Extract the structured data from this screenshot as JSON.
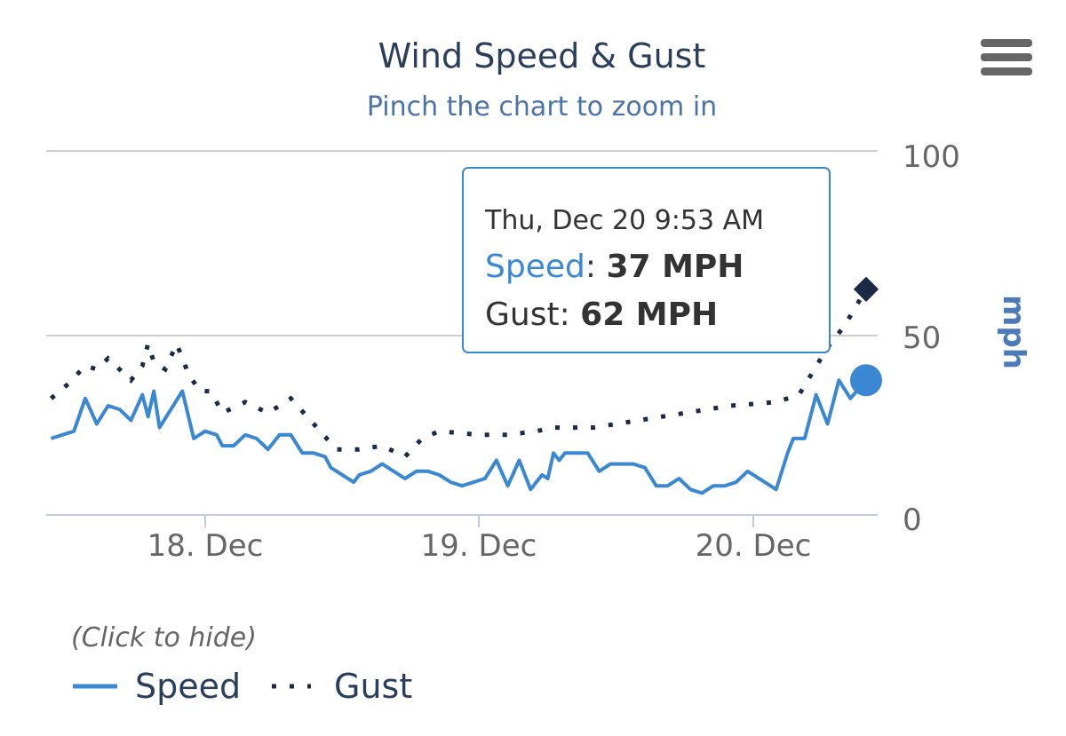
{
  "chart_data": {
    "type": "line",
    "title": "Wind Speed & Gust",
    "subtitle": "Pinch the chart to zoom in",
    "ylabel": "mph",
    "ylim": [
      0,
      100
    ],
    "y_ticks": [
      "0",
      "50",
      "100"
    ],
    "x_range": [
      "2018-12-17T10:30",
      "2018-12-20T09:53"
    ],
    "x_ticks": [
      {
        "label": "18. Dec",
        "t": "2018-12-18T00:00"
      },
      {
        "label": "19. Dec",
        "t": "2018-12-19T00:00"
      },
      {
        "label": "20. Dec",
        "t": "2018-12-20T00:00"
      }
    ],
    "grid": true,
    "legend_position": "bottom-left",
    "legend_hint": "(Click to hide)",
    "series": [
      {
        "name": "Speed",
        "color": "#3a87d4",
        "style": "solid",
        "points": [
          [
            "2018-12-17T10:30",
            21
          ],
          [
            "2018-12-17T11:30",
            22
          ],
          [
            "2018-12-17T12:30",
            23
          ],
          [
            "2018-12-17T13:30",
            32
          ],
          [
            "2018-12-17T14:30",
            25
          ],
          [
            "2018-12-17T15:30",
            30
          ],
          [
            "2018-12-17T16:30",
            29
          ],
          [
            "2018-12-17T17:30",
            26
          ],
          [
            "2018-12-17T18:30",
            33
          ],
          [
            "2018-12-17T19:00",
            27
          ],
          [
            "2018-12-17T19:30",
            34
          ],
          [
            "2018-12-17T20:00",
            24
          ],
          [
            "2018-12-17T21:00",
            29
          ],
          [
            "2018-12-17T22:00",
            34
          ],
          [
            "2018-12-17T23:00",
            21
          ],
          [
            "2018-12-18T00:00",
            23
          ],
          [
            "2018-12-18T01:00",
            22
          ],
          [
            "2018-12-18T01:30",
            19
          ],
          [
            "2018-12-18T02:30",
            19
          ],
          [
            "2018-12-18T03:30",
            22
          ],
          [
            "2018-12-18T04:30",
            21
          ],
          [
            "2018-12-18T05:30",
            18
          ],
          [
            "2018-12-18T06:30",
            22
          ],
          [
            "2018-12-18T07:30",
            22
          ],
          [
            "2018-12-18T08:30",
            17
          ],
          [
            "2018-12-18T09:30",
            17
          ],
          [
            "2018-12-18T10:30",
            16
          ],
          [
            "2018-12-18T11:00",
            13
          ],
          [
            "2018-12-18T12:00",
            11
          ],
          [
            "2018-12-18T13:00",
            9
          ],
          [
            "2018-12-18T13:30",
            11
          ],
          [
            "2018-12-18T14:30",
            12
          ],
          [
            "2018-12-18T15:30",
            14
          ],
          [
            "2018-12-18T16:30",
            12
          ],
          [
            "2018-12-18T17:30",
            10
          ],
          [
            "2018-12-18T18:30",
            12
          ],
          [
            "2018-12-18T19:30",
            12
          ],
          [
            "2018-12-18T20:30",
            11
          ],
          [
            "2018-12-18T21:30",
            9
          ],
          [
            "2018-12-18T22:30",
            8
          ],
          [
            "2018-12-18T23:30",
            9
          ],
          [
            "2018-12-19T00:30",
            10
          ],
          [
            "2018-12-19T01:30",
            15
          ],
          [
            "2018-12-19T02:30",
            8
          ],
          [
            "2018-12-19T03:30",
            15
          ],
          [
            "2018-12-19T04:30",
            7
          ],
          [
            "2018-12-19T05:30",
            11
          ],
          [
            "2018-12-19T06:00",
            10
          ],
          [
            "2018-12-19T06:30",
            17
          ],
          [
            "2018-12-19T07:00",
            15
          ],
          [
            "2018-12-19T07:30",
            17
          ],
          [
            "2018-12-19T08:30",
            17
          ],
          [
            "2018-12-19T09:30",
            17
          ],
          [
            "2018-12-19T10:30",
            12
          ],
          [
            "2018-12-19T11:30",
            14
          ],
          [
            "2018-12-19T12:30",
            14
          ],
          [
            "2018-12-19T13:30",
            14
          ],
          [
            "2018-12-19T14:30",
            13
          ],
          [
            "2018-12-19T15:30",
            8
          ],
          [
            "2018-12-19T16:30",
            8
          ],
          [
            "2018-12-19T17:30",
            10
          ],
          [
            "2018-12-19T18:30",
            7
          ],
          [
            "2018-12-19T19:30",
            6
          ],
          [
            "2018-12-19T20:30",
            8
          ],
          [
            "2018-12-19T21:30",
            8
          ],
          [
            "2018-12-19T22:30",
            9
          ],
          [
            "2018-12-19T23:30",
            12
          ],
          [
            "2018-12-20T01:00",
            9
          ],
          [
            "2018-12-20T02:00",
            7
          ],
          [
            "2018-12-20T03:00",
            17
          ],
          [
            "2018-12-20T03:30",
            21
          ],
          [
            "2018-12-20T04:30",
            21
          ],
          [
            "2018-12-20T05:30",
            33
          ],
          [
            "2018-12-20T06:30",
            25
          ],
          [
            "2018-12-20T07:30",
            37
          ],
          [
            "2018-12-20T08:30",
            32
          ],
          [
            "2018-12-20T09:53",
            37
          ]
        ]
      },
      {
        "name": "Gust",
        "color": "#1b2a45",
        "style": "dotted",
        "points": [
          [
            "2018-12-17T10:30",
            32
          ],
          [
            "2018-12-17T12:00",
            36
          ],
          [
            "2018-12-17T13:30",
            41
          ],
          [
            "2018-12-17T14:30",
            40
          ],
          [
            "2018-12-17T15:30",
            43
          ],
          [
            "2018-12-17T16:30",
            40
          ],
          [
            "2018-12-17T17:30",
            37
          ],
          [
            "2018-12-17T18:30",
            41
          ],
          [
            "2018-12-17T19:00",
            47
          ],
          [
            "2018-12-17T19:30",
            42
          ],
          [
            "2018-12-17T20:30",
            40
          ],
          [
            "2018-12-17T21:30",
            47
          ],
          [
            "2018-12-17T22:30",
            39
          ],
          [
            "2018-12-17T23:30",
            34
          ],
          [
            "2018-12-18T00:30",
            34
          ],
          [
            "2018-12-18T01:30",
            28
          ],
          [
            "2018-12-18T03:30",
            31
          ],
          [
            "2018-12-18T05:30",
            28
          ],
          [
            "2018-12-18T07:30",
            32
          ],
          [
            "2018-12-18T09:30",
            25
          ],
          [
            "2018-12-18T11:30",
            18
          ],
          [
            "2018-12-18T13:30",
            18
          ],
          [
            "2018-12-18T15:30",
            19
          ],
          [
            "2018-12-18T17:30",
            16
          ],
          [
            "2018-12-18T19:00",
            21
          ],
          [
            "2018-12-18T20:30",
            23
          ],
          [
            "2018-12-19T00:00",
            22
          ],
          [
            "2018-12-19T02:30",
            22
          ],
          [
            "2018-12-19T05:00",
            23
          ],
          [
            "2018-12-19T06:30",
            24
          ],
          [
            "2018-12-19T10:00",
            24
          ],
          [
            "2018-12-19T14:00",
            26
          ],
          [
            "2018-12-19T18:00",
            28
          ],
          [
            "2018-12-19T22:00",
            30
          ],
          [
            "2018-12-20T02:00",
            31
          ],
          [
            "2018-12-20T04:00",
            33
          ],
          [
            "2018-12-20T06:30",
            46
          ],
          [
            "2018-12-20T08:00",
            52
          ],
          [
            "2018-12-20T09:53",
            62
          ]
        ]
      }
    ],
    "highlight_index_time": "2018-12-20T09:53",
    "tooltip": {
      "time": "Thu, Dec 20 9:53 AM",
      "rows": [
        {
          "name": "Speed",
          "value": "37 MPH"
        },
        {
          "name": "Gust",
          "value": "62 MPH"
        }
      ]
    }
  }
}
